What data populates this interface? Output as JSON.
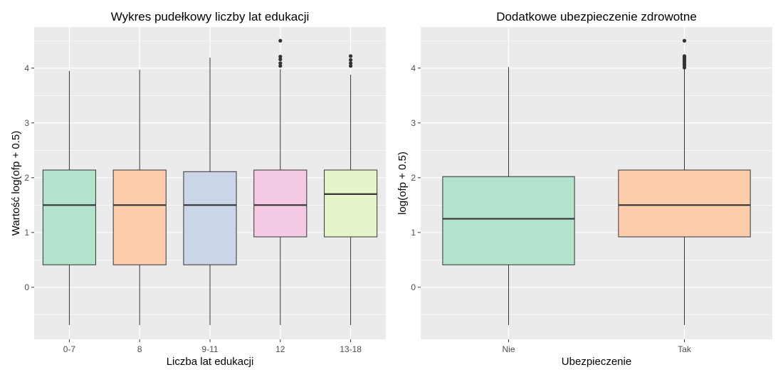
{
  "chart_data": [
    {
      "type": "boxplot",
      "title": "Wykres pudełkowy liczby lat edukacji",
      "xlabel": "Liczba lat edukacji",
      "ylabel": "Wartość log(ofp + 0.5)",
      "ylim": [
        -0.95,
        4.75
      ],
      "yticks": [
        0,
        1,
        2,
        3,
        4
      ],
      "grid": true,
      "categories": [
        "0-7",
        "8",
        "9-11",
        "12",
        "13-18"
      ],
      "colors": [
        "#b3e2cd",
        "#fdcdac",
        "#cbd5e8",
        "#f4cae4",
        "#e6f5c9"
      ],
      "boxes": [
        {
          "lower_whisker": -0.69,
          "q1": 0.41,
          "median": 1.5,
          "q3": 2.14,
          "upper_whisker": 3.95,
          "outliers": []
        },
        {
          "lower_whisker": -0.69,
          "q1": 0.41,
          "median": 1.5,
          "q3": 2.14,
          "upper_whisker": 3.97,
          "outliers": []
        },
        {
          "lower_whisker": -0.69,
          "q1": 0.41,
          "median": 1.5,
          "q3": 2.11,
          "upper_whisker": 4.19,
          "outliers": []
        },
        {
          "lower_whisker": -0.69,
          "q1": 0.92,
          "median": 1.5,
          "q3": 2.14,
          "upper_whisker": 3.98,
          "outliers": [
            4.04,
            4.09,
            4.16,
            4.21,
            4.5
          ]
        },
        {
          "lower_whisker": -0.69,
          "q1": 0.92,
          "median": 1.7,
          "q3": 2.14,
          "upper_whisker": 3.88,
          "outliers": [
            4.04,
            4.09,
            4.15,
            4.22
          ]
        }
      ]
    },
    {
      "type": "boxplot",
      "title": "Dodatkowe ubezpieczenie zdrowotne",
      "xlabel": "Ubezpieczenie",
      "ylabel": "log(ofp + 0.5)",
      "ylim": [
        -0.95,
        4.75
      ],
      "yticks": [
        0,
        1,
        2,
        3,
        4
      ],
      "grid": true,
      "categories": [
        "Nie",
        "Tak"
      ],
      "colors": [
        "#b3e2cd",
        "#fdcdac"
      ],
      "boxes": [
        {
          "lower_whisker": -0.69,
          "q1": 0.41,
          "median": 1.25,
          "q3": 2.02,
          "upper_whisker": 4.02,
          "outliers": []
        },
        {
          "lower_whisker": -0.69,
          "q1": 0.92,
          "median": 1.5,
          "q3": 2.14,
          "upper_whisker": 3.98,
          "outliers": [
            4.01,
            4.05,
            4.08,
            4.11,
            4.14,
            4.17,
            4.2,
            4.22,
            4.5
          ]
        }
      ]
    }
  ]
}
